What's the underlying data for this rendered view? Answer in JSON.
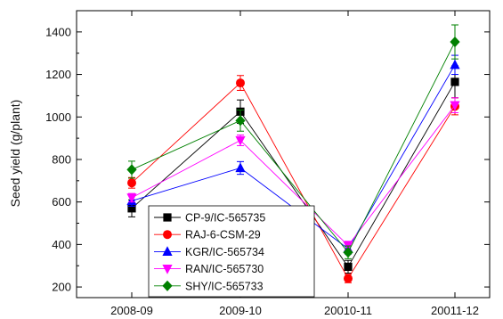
{
  "chart_data": {
    "type": "line",
    "title": "",
    "xlabel": "",
    "ylabel": "Seed yield (g/plant)",
    "categories": [
      "2008-09",
      "2009-10",
      "20010-11",
      "20011-12"
    ],
    "y_ticks": [
      "200",
      "400",
      "600",
      "800",
      "1000",
      "1200",
      "1400"
    ],
    "ylim": [
      150,
      1500
    ],
    "grid": false,
    "legend_position": "lower-left",
    "error_bars": true,
    "series": [
      {
        "name": "CP-9/IC-565735",
        "values": [
          570,
          1025,
          295,
          1165
        ],
        "errors": [
          40,
          55,
          30,
          75
        ],
        "color": "#000000",
        "marker": "square"
      },
      {
        "name": "RAJ-6-CSM-29",
        "values": [
          690,
          1160,
          240,
          1050
        ],
        "errors": [
          25,
          35,
          20,
          40
        ],
        "color": "#ff0000",
        "marker": "circle"
      },
      {
        "name": "KGR/IC-565734",
        "values": [
          605,
          760,
          380,
          1245
        ],
        "errors": [
          25,
          30,
          25,
          45
        ],
        "color": "#0000ff",
        "marker": "triangle-up"
      },
      {
        "name": "RAN/IC-565730",
        "values": [
          620,
          890,
          395,
          1055
        ],
        "errors": [
          20,
          25,
          20,
          35
        ],
        "color": "#ff00ff",
        "marker": "triangle-down"
      },
      {
        "name": "SHY/IC-565733",
        "values": [
          752,
          983,
          363,
          1353
        ],
        "errors": [
          40,
          50,
          30,
          80
        ],
        "color": "#008000",
        "marker": "diamond"
      }
    ]
  }
}
